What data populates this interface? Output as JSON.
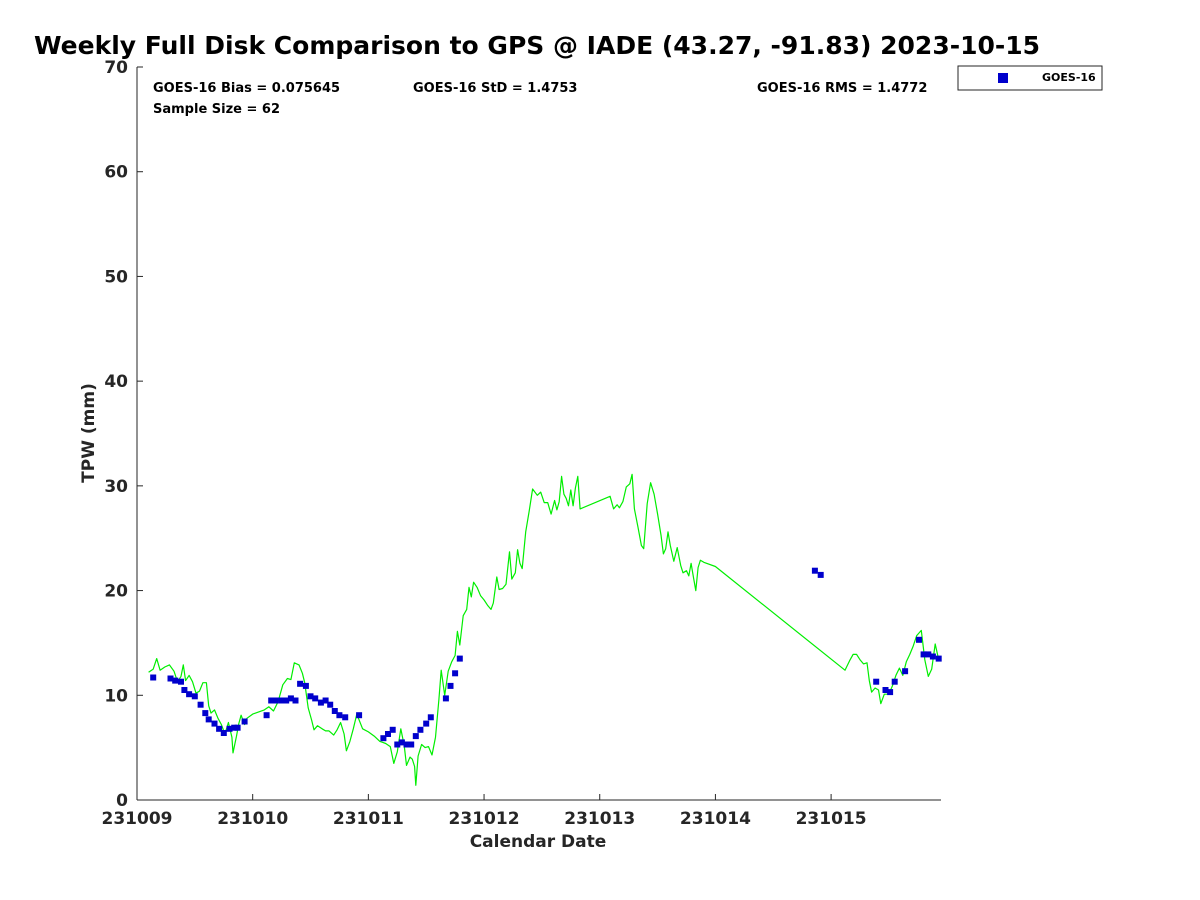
{
  "chart_data": {
    "type": "scatter",
    "title": "Weekly Full Disk Comparison to GPS @ IADE (43.27, -91.83) 2023-10-15",
    "xlabel": "Calendar Date",
    "ylabel": "TPW (mm)",
    "xlim": [
      0,
      6.95
    ],
    "ylim": [
      0,
      70
    ],
    "x_ticks": [
      {
        "value": 0,
        "label": "231009"
      },
      {
        "value": 1,
        "label": "231010"
      },
      {
        "value": 2,
        "label": "231011"
      },
      {
        "value": 3,
        "label": "231012"
      },
      {
        "value": 4,
        "label": "231013"
      },
      {
        "value": 5,
        "label": "231014"
      },
      {
        "value": 6,
        "label": "231015"
      }
    ],
    "y_ticks": [
      0,
      10,
      20,
      30,
      40,
      50,
      60,
      70
    ],
    "stats": {
      "bias": "GOES-16 Bias = 0.075645",
      "std": "GOES-16 StD = 1.4753",
      "rms": "GOES-16 RMS = 1.4772",
      "sample": "Sample Size = 62"
    },
    "legend": {
      "placement": "top-right outside",
      "entries": [
        "GOES-16"
      ]
    },
    "colors": {
      "goes": "#0000cc",
      "gps": "#00ee00",
      "axis": "#262626"
    },
    "series": [
      {
        "name": "GOES-16",
        "marker": "square",
        "points": [
          [
            0.14,
            11.7
          ],
          [
            0.29,
            11.6
          ],
          [
            0.33,
            11.4
          ],
          [
            0.38,
            11.3
          ],
          [
            0.41,
            10.5
          ],
          [
            0.45,
            10.1
          ],
          [
            0.5,
            9.9
          ],
          [
            0.55,
            9.1
          ],
          [
            0.59,
            8.3
          ],
          [
            0.62,
            7.7
          ],
          [
            0.67,
            7.3
          ],
          [
            0.71,
            6.8
          ],
          [
            0.75,
            6.4
          ],
          [
            0.8,
            6.8
          ],
          [
            0.84,
            6.9
          ],
          [
            0.87,
            6.9
          ],
          [
            0.93,
            7.5
          ],
          [
            1.12,
            8.1
          ],
          [
            1.16,
            9.5
          ],
          [
            1.2,
            9.5
          ],
          [
            1.25,
            9.5
          ],
          [
            1.29,
            9.5
          ],
          [
            1.33,
            9.7
          ],
          [
            1.37,
            9.5
          ],
          [
            1.41,
            11.1
          ],
          [
            1.46,
            10.9
          ],
          [
            1.5,
            9.9
          ],
          [
            1.54,
            9.7
          ],
          [
            1.59,
            9.3
          ],
          [
            1.63,
            9.5
          ],
          [
            1.67,
            9.1
          ],
          [
            1.71,
            8.5
          ],
          [
            1.75,
            8.1
          ],
          [
            1.8,
            7.9
          ],
          [
            1.92,
            8.1
          ],
          [
            2.13,
            5.9
          ],
          [
            2.17,
            6.3
          ],
          [
            2.21,
            6.7
          ],
          [
            2.25,
            5.3
          ],
          [
            2.29,
            5.5
          ],
          [
            2.33,
            5.3
          ],
          [
            2.37,
            5.3
          ],
          [
            2.41,
            6.1
          ],
          [
            2.45,
            6.7
          ],
          [
            2.5,
            7.3
          ],
          [
            2.54,
            7.9
          ],
          [
            2.67,
            9.7
          ],
          [
            2.71,
            10.9
          ],
          [
            2.75,
            12.1
          ],
          [
            2.79,
            13.5
          ],
          [
            5.86,
            21.9
          ],
          [
            5.91,
            21.5
          ],
          [
            6.39,
            11.3
          ],
          [
            6.47,
            10.5
          ],
          [
            6.51,
            10.3
          ],
          [
            6.55,
            11.3
          ],
          [
            6.64,
            12.3
          ],
          [
            6.76,
            15.3
          ],
          [
            6.8,
            13.9
          ],
          [
            6.84,
            13.9
          ],
          [
            6.88,
            13.7
          ],
          [
            6.93,
            13.5
          ]
        ]
      },
      {
        "name": "",
        "marker": "line",
        "points": [
          [
            0.1,
            12.2
          ],
          [
            0.14,
            12.5
          ],
          [
            0.17,
            13.5
          ],
          [
            0.2,
            12.4
          ],
          [
            0.24,
            12.7
          ],
          [
            0.28,
            12.9
          ],
          [
            0.32,
            12.3
          ],
          [
            0.35,
            11.3
          ],
          [
            0.38,
            11.8
          ],
          [
            0.4,
            12.9
          ],
          [
            0.42,
            11.4
          ],
          [
            0.45,
            11.9
          ],
          [
            0.48,
            11.3
          ],
          [
            0.51,
            10.2
          ],
          [
            0.54,
            10.4
          ],
          [
            0.57,
            11.2
          ],
          [
            0.6,
            11.2
          ],
          [
            0.62,
            9.0
          ],
          [
            0.64,
            8.3
          ],
          [
            0.67,
            8.6
          ],
          [
            0.7,
            7.8
          ],
          [
            0.73,
            7.2
          ],
          [
            0.76,
            6.3
          ],
          [
            0.79,
            7.4
          ],
          [
            0.82,
            6.0
          ],
          [
            0.83,
            4.5
          ],
          [
            0.86,
            6.1
          ],
          [
            0.88,
            7.3
          ],
          [
            0.9,
            8.1
          ],
          [
            0.93,
            7.2
          ],
          [
            0.95,
            7.8
          ],
          [
            1.0,
            8.2
          ],
          [
            1.1,
            8.6
          ],
          [
            1.14,
            8.9
          ],
          [
            1.18,
            8.5
          ],
          [
            1.22,
            9.4
          ],
          [
            1.26,
            11.0
          ],
          [
            1.3,
            11.6
          ],
          [
            1.33,
            11.5
          ],
          [
            1.36,
            13.1
          ],
          [
            1.4,
            12.9
          ],
          [
            1.43,
            12.1
          ],
          [
            1.45,
            11.2
          ],
          [
            1.48,
            8.8
          ],
          [
            1.51,
            7.6
          ],
          [
            1.53,
            6.7
          ],
          [
            1.56,
            7.1
          ],
          [
            1.6,
            6.8
          ],
          [
            1.63,
            6.6
          ],
          [
            1.66,
            6.6
          ],
          [
            1.7,
            6.2
          ],
          [
            1.73,
            6.7
          ],
          [
            1.76,
            7.4
          ],
          [
            1.79,
            6.3
          ],
          [
            1.81,
            4.7
          ],
          [
            1.84,
            5.6
          ],
          [
            1.87,
            6.8
          ],
          [
            1.9,
            8.2
          ],
          [
            1.95,
            6.8
          ],
          [
            2.0,
            6.5
          ],
          [
            2.05,
            6.1
          ],
          [
            2.1,
            5.6
          ],
          [
            2.15,
            5.4
          ],
          [
            2.19,
            5.1
          ],
          [
            2.22,
            3.5
          ],
          [
            2.25,
            4.6
          ],
          [
            2.28,
            6.8
          ],
          [
            2.31,
            5.2
          ],
          [
            2.33,
            3.3
          ],
          [
            2.36,
            4.1
          ],
          [
            2.38,
            3.9
          ],
          [
            2.4,
            3.2
          ],
          [
            2.41,
            1.4
          ],
          [
            2.43,
            4.2
          ],
          [
            2.46,
            5.3
          ],
          [
            2.49,
            5.0
          ],
          [
            2.52,
            5.1
          ],
          [
            2.55,
            4.3
          ],
          [
            2.58,
            6.0
          ],
          [
            2.61,
            9.6
          ],
          [
            2.63,
            12.4
          ],
          [
            2.66,
            10.0
          ],
          [
            2.69,
            12.3
          ],
          [
            2.72,
            13.2
          ],
          [
            2.75,
            13.8
          ],
          [
            2.77,
            16.1
          ],
          [
            2.79,
            14.8
          ],
          [
            2.82,
            17.6
          ],
          [
            2.85,
            18.2
          ],
          [
            2.87,
            20.3
          ],
          [
            2.89,
            19.4
          ],
          [
            2.91,
            20.8
          ],
          [
            2.94,
            20.3
          ],
          [
            2.97,
            19.5
          ],
          [
            3.0,
            19.1
          ],
          [
            3.03,
            18.6
          ],
          [
            3.06,
            18.2
          ],
          [
            3.08,
            18.8
          ],
          [
            3.11,
            21.3
          ],
          [
            3.13,
            20.1
          ],
          [
            3.16,
            20.2
          ],
          [
            3.19,
            20.6
          ],
          [
            3.22,
            23.7
          ],
          [
            3.24,
            21.1
          ],
          [
            3.27,
            21.7
          ],
          [
            3.29,
            23.9
          ],
          [
            3.31,
            22.6
          ],
          [
            3.33,
            22.1
          ],
          [
            3.36,
            25.6
          ],
          [
            3.39,
            27.6
          ],
          [
            3.42,
            29.7
          ],
          [
            3.46,
            29.1
          ],
          [
            3.49,
            29.4
          ],
          [
            3.52,
            28.4
          ],
          [
            3.55,
            28.4
          ],
          [
            3.58,
            27.3
          ],
          [
            3.61,
            28.6
          ],
          [
            3.63,
            27.7
          ],
          [
            3.65,
            28.5
          ],
          [
            3.67,
            30.9
          ],
          [
            3.69,
            29.2
          ],
          [
            3.71,
            28.8
          ],
          [
            3.73,
            28.1
          ],
          [
            3.75,
            29.6
          ],
          [
            3.77,
            28.1
          ],
          [
            3.79,
            29.8
          ],
          [
            3.81,
            30.9
          ],
          [
            3.83,
            27.8
          ],
          [
            4.09,
            29.0
          ],
          [
            4.12,
            27.8
          ],
          [
            4.15,
            28.2
          ],
          [
            4.17,
            27.9
          ],
          [
            4.2,
            28.5
          ],
          [
            4.23,
            29.9
          ],
          [
            4.26,
            30.2
          ],
          [
            4.28,
            31.1
          ],
          [
            4.3,
            27.8
          ],
          [
            4.33,
            26.1
          ],
          [
            4.36,
            24.3
          ],
          [
            4.38,
            24.0
          ],
          [
            4.41,
            28.3
          ],
          [
            4.44,
            30.3
          ],
          [
            4.47,
            29.2
          ],
          [
            4.5,
            27.3
          ],
          [
            4.53,
            25.3
          ],
          [
            4.55,
            23.5
          ],
          [
            4.57,
            24.0
          ],
          [
            4.59,
            25.6
          ],
          [
            4.61,
            24.3
          ],
          [
            4.64,
            22.8
          ],
          [
            4.67,
            24.1
          ],
          [
            4.7,
            22.4
          ],
          [
            4.72,
            21.7
          ],
          [
            4.75,
            21.9
          ],
          [
            4.77,
            21.4
          ],
          [
            4.79,
            22.6
          ],
          [
            4.81,
            21.3
          ],
          [
            4.83,
            20.0
          ],
          [
            4.85,
            22.2
          ],
          [
            4.87,
            22.9
          ],
          [
            4.9,
            22.7
          ],
          [
            5.0,
            22.3
          ],
          [
            6.12,
            12.4
          ],
          [
            6.16,
            13.3
          ],
          [
            6.19,
            13.9
          ],
          [
            6.22,
            13.9
          ],
          [
            6.25,
            13.4
          ],
          [
            6.28,
            13.0
          ],
          [
            6.31,
            13.1
          ],
          [
            6.33,
            11.4
          ],
          [
            6.35,
            10.3
          ],
          [
            6.38,
            10.7
          ],
          [
            6.41,
            10.5
          ],
          [
            6.43,
            9.2
          ],
          [
            6.46,
            10.1
          ],
          [
            6.5,
            10.1
          ],
          [
            6.53,
            10.9
          ],
          [
            6.56,
            11.9
          ],
          [
            6.59,
            12.6
          ],
          [
            6.62,
            11.9
          ],
          [
            6.65,
            13.2
          ],
          [
            6.68,
            13.9
          ],
          [
            6.71,
            14.7
          ],
          [
            6.74,
            15.7
          ],
          [
            6.78,
            16.2
          ],
          [
            6.81,
            13.4
          ],
          [
            6.84,
            11.8
          ],
          [
            6.87,
            12.5
          ],
          [
            6.9,
            14.9
          ],
          [
            6.93,
            13.4
          ],
          [
            6.95,
            13.6
          ]
        ]
      }
    ]
  }
}
